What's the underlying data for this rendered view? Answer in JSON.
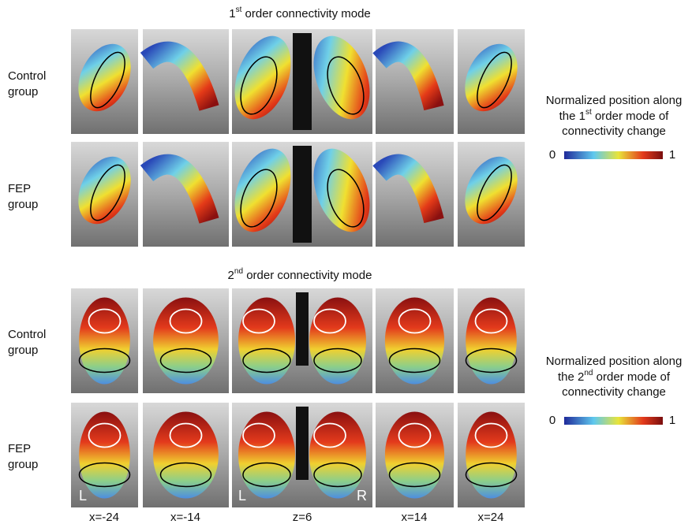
{
  "sections": [
    {
      "title": {
        "number": "1",
        "suffix": "st",
        "text": "order connectivity mode"
      },
      "rows": [
        {
          "label": [
            "Control",
            "group"
          ]
        },
        {
          "label": [
            "FEP",
            "group"
          ]
        }
      ],
      "legend": {
        "line1": "Normalized position along",
        "prefix": "the",
        "number": "1",
        "suffix": "st",
        "text": "order mode of",
        "line3": "connectivity change",
        "min": "0",
        "max": "1"
      }
    },
    {
      "title": {
        "number": "2",
        "suffix": "nd",
        "text": "order connectivity mode"
      },
      "rows": [
        {
          "label": [
            "Control",
            "group"
          ]
        },
        {
          "label": [
            "FEP",
            "group"
          ]
        }
      ],
      "legend": {
        "line1": "Normalized position along",
        "prefix": "the",
        "number": "2",
        "suffix": "nd",
        "text": "order mode of",
        "line3": "connectivity change",
        "min": "0",
        "max": "1"
      }
    }
  ],
  "column_labels": [
    "x=-24",
    "x=-14",
    "z=6",
    "x=14",
    "x=24"
  ],
  "orientation_labels": [
    "L",
    "L",
    "R"
  ]
}
